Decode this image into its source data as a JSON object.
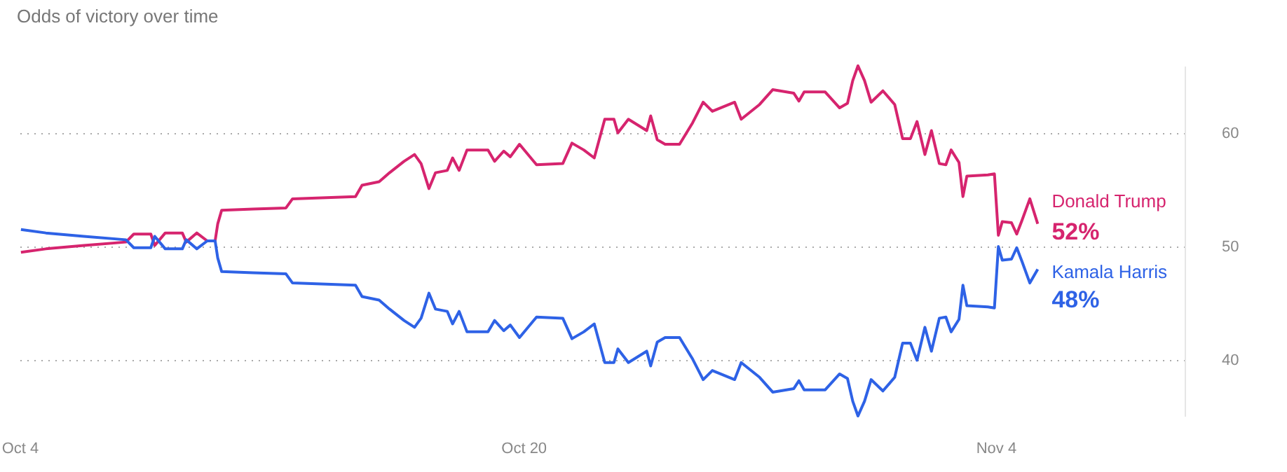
{
  "chart_data": {
    "type": "line",
    "title": "Odds of victory over time",
    "x": [
      "--10-04T01:00",
      "--10-04T20:00",
      "--10-06T01:00",
      "--10-07T09:00",
      "--10-07T15:00",
      "--10-08T04:00",
      "--10-08T07:00",
      "--10-08T15:00",
      "--10-09T04:00",
      "--10-09T07:00",
      "--10-09T15:00",
      "--10-09T23:00",
      "--10-10T05:00",
      "--10-10T07:00",
      "--10-10T10:00",
      "--10-11T10:00",
      "--10-12T11:00",
      "--10-12T16:00",
      "--10-14T16:00",
      "--10-14T21:00",
      "--10-15T10:00",
      "--10-15T18:00",
      "--10-16T05:00",
      "--10-16T13:00",
      "--10-16T18:00",
      "--10-17T00:00",
      "--10-17T05:00",
      "--10-17T14:00",
      "--10-17T18:00",
      "--10-17T23:00",
      "--10-18T05:00",
      "--10-18T21:00",
      "--10-19T02:00",
      "--10-19T09:00",
      "--10-19T14:00",
      "--10-19T21:00",
      "--10-20T10:00",
      "--10-21T06:00",
      "--10-21T13:00",
      "--10-21T22:00",
      "--10-22T06:00",
      "--10-22T14:00",
      "--10-22T21:00",
      "--10-23T00:00",
      "--10-23T08:00",
      "--10-23T22:00",
      "--10-24T01:00",
      "--10-24T06:00",
      "--10-24T12:00",
      "--10-24T23:00",
      "--10-25T09:00",
      "--10-25T17:00",
      "--10-26T00:00",
      "--10-26T17:00",
      "--10-26T22:00",
      "--10-27T12:00",
      "--10-27T22:00",
      "--10-28T14:00",
      "--10-28T18:00",
      "--10-28T22:00",
      "--10-29T14:00",
      "--10-30T01:00",
      "--10-30T07:00",
      "--10-30T11:00",
      "--10-30T15:00",
      "--10-30T20:00",
      "--10-31T01:00",
      "--10-31T10:00",
      "--10-31T19:00",
      "--11-01T01:00",
      "--11-01T07:00",
      "--11-01T12:00",
      "--11-01T18:00",
      "--11-01T23:00",
      "--11-02T05:00",
      "--11-02T10:00",
      "--11-02T14:00",
      "--11-02T20:00",
      "--11-02T23:00",
      "--11-03T02:00",
      "--11-03T18:00",
      "--11-03T23:00",
      "--11-04T02:00",
      "--11-04T05:00",
      "--11-04T12:00",
      "--11-04T16:00",
      "--11-04T20:00",
      "--11-05T02:00",
      "--11-05T08:00"
    ],
    "series": [
      {
        "name": "Donald Trump",
        "color": "#d6246e",
        "values": [
          49.5,
          49.8,
          50.1,
          50.4,
          51.1,
          51.1,
          50.1,
          51.2,
          51.2,
          50.4,
          51.2,
          50.5,
          50.5,
          52,
          53.2,
          53.3,
          53.4,
          54.2,
          54.4,
          55.4,
          55.7,
          56.5,
          57.5,
          58.1,
          57.3,
          55.1,
          56.5,
          56.7,
          57.8,
          56.7,
          58.5,
          58.5,
          57.5,
          58.4,
          57.9,
          59,
          57.2,
          57.3,
          59.1,
          58.5,
          57.8,
          61.2,
          61.2,
          60,
          61.2,
          60.2,
          61.5,
          59.4,
          59,
          59,
          60.9,
          62.7,
          61.9,
          62.7,
          61.2,
          62.5,
          63.8,
          63.5,
          62.8,
          63.6,
          63.6,
          62.2,
          62.6,
          64.6,
          65.9,
          64.6,
          62.7,
          63.7,
          62.5,
          59.5,
          59.5,
          61,
          58.1,
          60.2,
          57.3,
          57.2,
          58.5,
          57.4,
          54.4,
          56.2,
          56.3,
          56.4,
          51,
          52.2,
          52.1,
          51.1,
          52.3,
          54.2,
          52
        ],
        "value_labels": [
          null,
          null,
          null,
          null,
          null,
          null,
          null,
          null,
          null,
          null,
          null,
          null,
          null,
          null,
          null,
          null,
          null,
          null,
          null,
          null,
          null,
          null,
          null,
          null,
          null,
          null,
          null,
          null,
          null,
          null,
          null,
          null,
          null,
          null,
          null,
          null,
          null,
          null,
          null,
          null,
          null,
          null,
          null,
          null,
          null,
          null,
          null,
          null,
          null,
          null,
          null,
          null,
          null,
          null,
          null,
          null,
          null,
          null,
          null,
          null,
          null,
          null,
          null,
          null,
          null,
          null,
          null,
          null,
          null,
          null,
          null,
          null,
          null,
          null,
          null,
          null,
          null,
          null,
          null,
          null,
          null,
          null,
          null,
          null,
          null,
          null,
          null,
          null,
          "52%"
        ]
      },
      {
        "name": "Kamala Harris",
        "color": "#2e62e6",
        "values": [
          51.5,
          51.2,
          50.9,
          50.6,
          49.9,
          49.9,
          50.9,
          49.8,
          49.8,
          50.6,
          49.8,
          50.5,
          50.5,
          49,
          47.8,
          47.7,
          47.6,
          46.8,
          46.6,
          45.6,
          45.3,
          44.5,
          43.5,
          42.9,
          43.7,
          45.9,
          44.5,
          44.3,
          43.2,
          44.3,
          42.5,
          42.5,
          43.5,
          42.6,
          43.1,
          42,
          43.8,
          43.7,
          41.9,
          42.5,
          43.2,
          39.8,
          39.8,
          41,
          39.8,
          40.8,
          39.5,
          41.6,
          42,
          42,
          40.1,
          38.3,
          39.1,
          38.3,
          39.8,
          38.5,
          37.2,
          37.5,
          38.2,
          37.4,
          37.4,
          38.8,
          38.4,
          36.4,
          35.1,
          36.4,
          38.3,
          37.3,
          38.5,
          41.5,
          41.5,
          40,
          42.9,
          40.8,
          43.7,
          43.8,
          42.5,
          43.6,
          46.6,
          44.8,
          44.7,
          44.6,
          50,
          48.8,
          48.9,
          49.9,
          48.7,
          46.8,
          48
        ],
        "value_labels": [
          null,
          null,
          null,
          null,
          null,
          null,
          null,
          null,
          null,
          null,
          null,
          null,
          null,
          null,
          null,
          null,
          null,
          null,
          null,
          null,
          null,
          null,
          null,
          null,
          null,
          null,
          null,
          null,
          null,
          null,
          null,
          null,
          null,
          null,
          null,
          null,
          null,
          null,
          null,
          null,
          null,
          null,
          null,
          null,
          null,
          null,
          null,
          null,
          null,
          null,
          null,
          null,
          null,
          null,
          null,
          null,
          null,
          null,
          null,
          null,
          null,
          null,
          null,
          null,
          null,
          null,
          null,
          null,
          null,
          null,
          null,
          null,
          null,
          null,
          null,
          null,
          null,
          null,
          null,
          null,
          null,
          null,
          null,
          null,
          null,
          null,
          null,
          null,
          "48%"
        ]
      }
    ],
    "xlim": [
      "--10-04",
      "--11-10"
    ],
    "xticks": [
      {
        "value": "--10-04",
        "label": "Oct 4"
      },
      {
        "value": "--10-20",
        "label": "Oct 20"
      },
      {
        "value": "--11-04",
        "label": "Nov 4"
      }
    ],
    "ylim": [
      35.1,
      65.9
    ],
    "yticks": [
      40,
      50,
      60
    ],
    "grid": "y",
    "line_style": "solid"
  }
}
